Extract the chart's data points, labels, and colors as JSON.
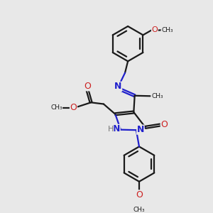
{
  "bg_color": "#e8e8e8",
  "bond_color": "#1a1a1a",
  "nitrogen_color": "#2020cc",
  "oxygen_color": "#cc2020",
  "hydrogen_color": "#777777",
  "line_width": 1.6,
  "figsize": [
    3.0,
    3.0
  ],
  "dpi": 100,
  "xlim": [
    0,
    10
  ],
  "ylim": [
    0,
    10
  ]
}
